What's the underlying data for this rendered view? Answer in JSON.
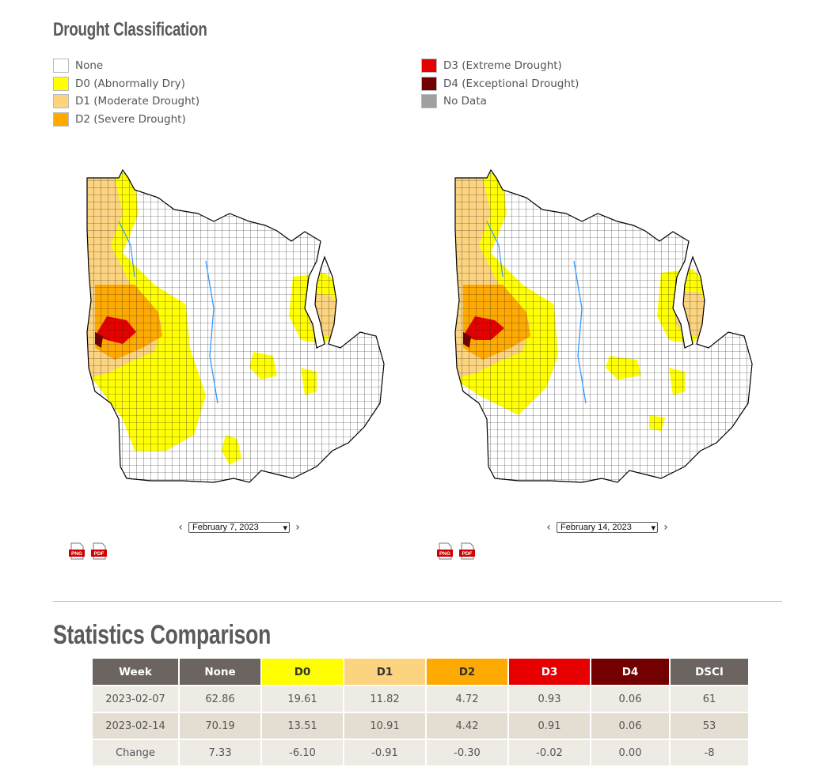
{
  "title": "Drought Classification",
  "legend": {
    "col1": [
      {
        "label": "None",
        "color": "#ffffff"
      },
      {
        "label": "D0 (Abnormally Dry)",
        "color": "#ffff00"
      },
      {
        "label": "D1 (Moderate Drought)",
        "color": "#fcd37f"
      },
      {
        "label": "D2 (Severe Drought)",
        "color": "#ffaa00"
      }
    ],
    "col2": [
      {
        "label": "D3 (Extreme Drought)",
        "color": "#e60000"
      },
      {
        "label": "D4 (Exceptional Drought)",
        "color": "#730000"
      },
      {
        "label": "No Data",
        "color": "#a0a0a0"
      }
    ]
  },
  "maps": [
    {
      "date": "February 7, 2023",
      "png_label": "PNG",
      "pdf_label": "PDF"
    },
    {
      "date": "February 14, 2023",
      "png_label": "PNG",
      "pdf_label": "PDF"
    }
  ],
  "stats": {
    "title": "Statistics Comparison",
    "headers": [
      "Week",
      "None",
      "D0",
      "D1",
      "D2",
      "D3",
      "D4",
      "DSCI"
    ],
    "header_colors": [
      "#6b6461",
      "#6b6461",
      "#ffff00",
      "#fcd37f",
      "#ffaa00",
      "#e60000",
      "#730000",
      "#6b6461"
    ],
    "header_text_colors": [
      "#ffffff",
      "#ffffff",
      "#333333",
      "#333333",
      "#333333",
      "#ffffff",
      "#ffffff",
      "#ffffff"
    ],
    "rows": [
      [
        "2023-02-07",
        "62.86",
        "19.61",
        "11.82",
        "4.72",
        "0.93",
        "0.06",
        "61"
      ],
      [
        "2023-02-14",
        "70.19",
        "13.51",
        "10.91",
        "4.42",
        "0.91",
        "0.06",
        "53"
      ],
      [
        "Change",
        "7.33",
        "-6.10",
        "-0.91",
        "-0.30",
        "-0.02",
        "0.00",
        "-8"
      ]
    ]
  }
}
